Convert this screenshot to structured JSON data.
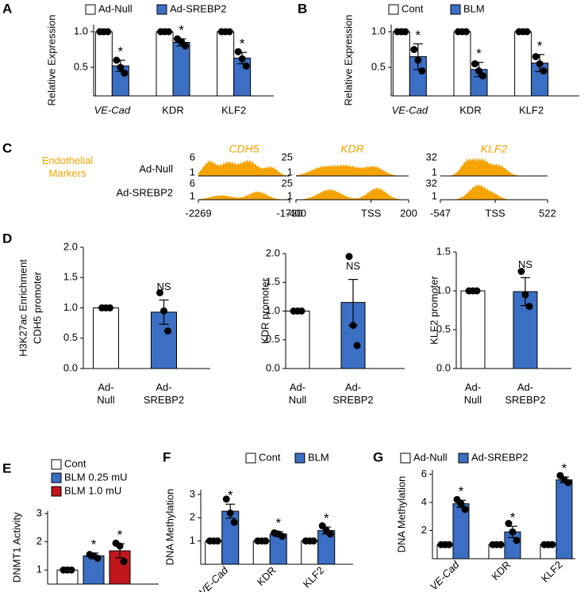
{
  "chart_data": [
    {
      "type": "bar",
      "panel": "A",
      "ylabel": "Relative Expression",
      "categories": [
        "VE-Cad",
        "KDR",
        "KLF2"
      ],
      "ylim": [
        0.1,
        1.1
      ],
      "yticks": [
        0.5,
        {
          "value": 1,
          "label": "1.0"
        }
      ],
      "series": [
        {
          "name": "Ad-Null",
          "color": "#ffffff",
          "values": [
            1,
            1,
            1
          ],
          "points": [
            [
              1,
              1,
              1
            ],
            [
              1,
              1,
              1
            ],
            [
              1,
              1,
              1
            ]
          ]
        },
        {
          "name": "Ad-SREBP2",
          "color": "#3b6fc4",
          "values": [
            0.52,
            0.85,
            0.63
          ],
          "errors": [
            0.08,
            0.05,
            0.08
          ],
          "points": [
            [
              0.6,
              0.5,
              0.42
            ],
            [
              0.9,
              0.86,
              0.8
            ],
            [
              0.72,
              0.62,
              0.52
            ]
          ],
          "annotations": [
            "*",
            "*",
            "*"
          ]
        }
      ]
    },
    {
      "type": "bar",
      "panel": "B",
      "ylabel": "Relative Expression",
      "categories": [
        "VE-Cad",
        "KDR",
        "KLF2"
      ],
      "ylim": [
        0.1,
        1.1
      ],
      "yticks": [
        0.5,
        {
          "value": 1,
          "label": "1.0"
        }
      ],
      "series": [
        {
          "name": "Cont",
          "color": "#ffffff",
          "values": [
            1,
            1,
            1
          ],
          "points": [
            [
              1,
              1,
              1
            ],
            [
              1,
              1,
              1
            ],
            [
              1,
              1,
              1
            ]
          ]
        },
        {
          "name": "BLM",
          "color": "#3b6fc4",
          "values": [
            0.65,
            0.47,
            0.56
          ],
          "errors": [
            0.18,
            0.1,
            0.12
          ],
          "points": [
            [
              0.75,
              0.6,
              0.45
            ],
            [
              0.55,
              0.45,
              0.38
            ],
            [
              0.65,
              0.55,
              0.45
            ]
          ],
          "annotations": [
            "*",
            "*",
            "*"
          ]
        }
      ]
    },
    {
      "type": "track",
      "panel": "C",
      "label": "Endothelial Markers",
      "rows": [
        "Ad-Null",
        "Ad-SREBP2"
      ],
      "tracks": [
        {
          "title": "CDH5",
          "yticks": [
            6,
            1
          ],
          "xticks": [
            -2269,
            -1730
          ]
        },
        {
          "title": "KDR",
          "yticks": [
            25,
            1
          ],
          "xticks": [
            -400,
            {
              "value": 0,
              "label": "TSS"
            },
            200
          ]
        },
        {
          "title": "KLF2",
          "yticks": [
            32,
            1
          ],
          "xticks": [
            -547,
            {
              "value": 0,
              "label": "TSS"
            },
            522
          ]
        }
      ]
    },
    {
      "type": "bar",
      "panel": "D",
      "ylabel_outer": "H3K27ac Enrichment",
      "ylabel": "CDH5 promoter",
      "categories": [
        "Ad-Null",
        "Ad-SREBP2"
      ],
      "ylim": [
        0,
        2
      ],
      "yticks": [
        {
          "value": 0,
          "label": "0.0"
        },
        0.5,
        {
          "value": 1,
          "label": "1.0"
        },
        1.5,
        {
          "value": 2,
          "label": "2.0"
        }
      ],
      "series": [
        {
          "colors": [
            "#ffffff",
            "#3b6fc4"
          ],
          "values": [
            1,
            0.93
          ],
          "errors": [
            0,
            0.2
          ],
          "points": [
            [
              1,
              1,
              1
            ],
            [
              1.25,
              0.95,
              0.62
            ]
          ],
          "annotations": [
            null,
            "NS"
          ]
        }
      ]
    },
    {
      "type": "bar",
      "ylabel": "KDR promoter",
      "categories": [
        "Ad-Null",
        "Ad-SREBP2"
      ],
      "ylim": [
        0,
        2
      ],
      "yticks": [
        {
          "value": 0,
          "label": "0.0"
        },
        0.5,
        {
          "value": 1,
          "label": "1.0"
        },
        1.5,
        {
          "value": 2,
          "label": "2.0"
        }
      ],
      "series": [
        {
          "colors": [
            "#ffffff",
            "#3b6fc4"
          ],
          "values": [
            1,
            1.15
          ],
          "errors": [
            0,
            0.4
          ],
          "points": [
            [
              1,
              1,
              1
            ],
            [
              1.95,
              0.75,
              0.4
            ]
          ],
          "annotations": [
            null,
            "NS"
          ]
        }
      ]
    },
    {
      "type": "bar",
      "ylabel": "KLF2 promoter",
      "categories": [
        "Ad-Null",
        "Ad-SREBP2"
      ],
      "ylim": [
        0,
        1.5
      ],
      "yticks": [
        {
          "value": 0,
          "label": "0.0"
        },
        0.5,
        {
          "value": 1,
          "label": "1.0"
        },
        1.5
      ],
      "series": [
        {
          "colors": [
            "#ffffff",
            "#3b6fc4"
          ],
          "values": [
            1,
            0.99
          ],
          "errors": [
            0,
            0.18
          ],
          "points": [
            [
              1,
              1,
              1
            ],
            [
              1.25,
              0.95,
              0.8
            ]
          ],
          "annotations": [
            null,
            "NS"
          ]
        }
      ]
    },
    {
      "type": "bar",
      "panel": "E",
      "ylabel": "DNMT1 Activity",
      "ylim": [
        0.5,
        3.1
      ],
      "yticks": [
        1,
        2,
        3
      ],
      "series": [
        {
          "name": "Cont",
          "color": "#ffffff",
          "values": [
            1
          ],
          "points": [
            [
              1,
              1,
              1
            ]
          ]
        },
        {
          "name": "BLM 0.25 mU",
          "color": "#3b6fc4",
          "values": [
            1.5
          ],
          "errors": [
            0.1
          ],
          "points": [
            [
              1.55,
              1.5,
              1.42
            ]
          ],
          "annotations": [
            "*"
          ]
        },
        {
          "name": "BLM 1.0 mU",
          "color": "#c0161c",
          "values": [
            1.68
          ],
          "errors": [
            0.25
          ],
          "points": [
            [
              1.95,
              1.85,
              1.3
            ]
          ],
          "annotations": [
            "*"
          ]
        }
      ]
    },
    {
      "type": "bar",
      "panel": "F",
      "ylabel": "DNA Methylation",
      "categories": [
        "VE-Cad",
        "KDR",
        "KLF2"
      ],
      "ylim": [
        0,
        3.2
      ],
      "yticks": [
        1,
        2,
        3
      ],
      "series": [
        {
          "name": "Cont",
          "color": "#ffffff",
          "values": [
            1,
            1,
            1
          ],
          "points": [
            [
              1,
              1,
              1
            ],
            [
              1,
              1,
              1
            ],
            [
              1,
              1,
              1
            ]
          ]
        },
        {
          "name": "BLM",
          "color": "#3b6fc4",
          "values": [
            2.28,
            1.3,
            1.45
          ],
          "errors": [
            0.3,
            0.1,
            0.15
          ],
          "points": [
            [
              2.8,
              2.2,
              1.8
            ],
            [
              1.35,
              1.3,
              1.2
            ],
            [
              1.65,
              1.45,
              1.3
            ]
          ],
          "annotations": [
            "*",
            "*",
            "*"
          ]
        }
      ]
    },
    {
      "type": "bar",
      "panel": "G",
      "ylabel": "DNA Methylation",
      "categories": [
        "VE-Cad",
        "KDR",
        "KLF2"
      ],
      "ylim": [
        0,
        6.3
      ],
      "yticks": [
        2,
        4,
        6
      ],
      "series": [
        {
          "name": "Ad-Null",
          "color": "#ffffff",
          "values": [
            1,
            1,
            1
          ],
          "points": [
            [
              1,
              1,
              1
            ],
            [
              1,
              1,
              1
            ],
            [
              1,
              1,
              1
            ]
          ]
        },
        {
          "name": "Ad-SREBP2",
          "color": "#3b6fc4",
          "values": [
            3.9,
            1.9,
            5.6
          ],
          "errors": [
            0.25,
            0.4,
            0.2
          ],
          "points": [
            [
              4.2,
              3.9,
              3.5
            ],
            [
              2.5,
              1.9,
              1.3
            ],
            [
              5.9,
              5.6,
              5.4
            ]
          ],
          "annotations": [
            "*",
            "*",
            "*"
          ]
        }
      ]
    }
  ]
}
